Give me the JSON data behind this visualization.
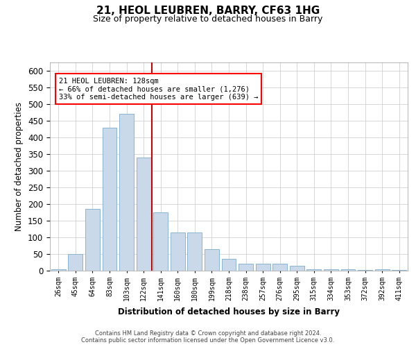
{
  "title_line1": "21, HEOL LEUBREN, BARRY, CF63 1HG",
  "title_line2": "Size of property relative to detached houses in Barry",
  "xlabel": "Distribution of detached houses by size in Barry",
  "ylabel": "Number of detached properties",
  "footnote": "Contains HM Land Registry data © Crown copyright and database right 2024.\nContains public sector information licensed under the Open Government Licence v3.0.",
  "annotation_line1": "21 HEOL LEUBREN: 128sqm",
  "annotation_line2": "← 66% of detached houses are smaller (1,276)",
  "annotation_line3": "33% of semi-detached houses are larger (639) →",
  "bar_color": "#c9d9ea",
  "bar_edge_color": "#8ab4d0",
  "property_line_color": "#cc0000",
  "grid_color": "#d0d0d0",
  "bins": [
    "26sqm",
    "45sqm",
    "64sqm",
    "83sqm",
    "103sqm",
    "122sqm",
    "141sqm",
    "160sqm",
    "180sqm",
    "199sqm",
    "218sqm",
    "238sqm",
    "257sqm",
    "276sqm",
    "295sqm",
    "315sqm",
    "334sqm",
    "353sqm",
    "372sqm",
    "392sqm",
    "411sqm"
  ],
  "counts": [
    5,
    50,
    185,
    430,
    470,
    340,
    175,
    115,
    115,
    65,
    35,
    20,
    20,
    20,
    15,
    5,
    5,
    5,
    2,
    5,
    2
  ],
  "property_x": 5.5,
  "ylim": [
    0,
    625
  ],
  "xlim": [
    -0.5,
    20.5
  ],
  "yticks": [
    0,
    50,
    100,
    150,
    200,
    250,
    300,
    350,
    400,
    450,
    500,
    550,
    600
  ]
}
